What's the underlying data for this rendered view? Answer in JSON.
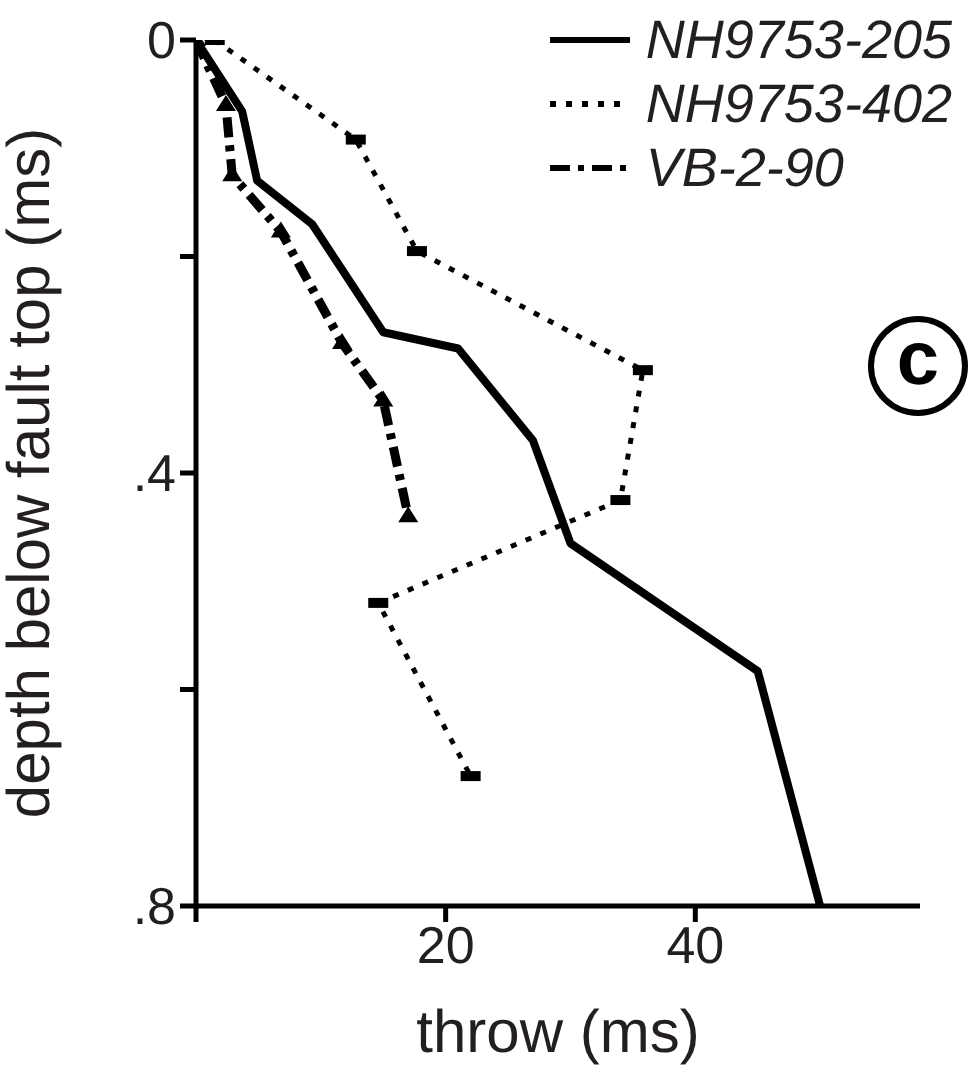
{
  "chart_data": {
    "type": "line",
    "xlabel": "throw (ms)",
    "ylabel": "depth below fault top (ms)",
    "annotations": [
      "c"
    ],
    "xlim": [
      0,
      58
    ],
    "xticks": [
      {
        "value": 0,
        "label": null
      },
      20,
      40
    ],
    "ylim": [
      0.8,
      0
    ],
    "yticks": [
      {
        "value": 0,
        "label": "0"
      },
      {
        "value": 0.2,
        "label": null
      },
      {
        "value": 0.4,
        "label": ".4"
      },
      {
        "value": 0.6,
        "label": null
      },
      {
        "value": 0.8,
        "label": ".8"
      }
    ],
    "grid": false,
    "legend": "top right",
    "series": [
      {
        "name": "NH9753-205",
        "color": "#000000",
        "line_style": "solid",
        "marker": "none",
        "x": [
          0,
          3.7,
          4.9,
          9.3,
          15,
          21,
          27,
          30,
          45,
          50
        ],
        "values": [
          0,
          0.066,
          0.13,
          0.17,
          0.27,
          0.285,
          0.37,
          0.465,
          0.583,
          0.8
        ]
      },
      {
        "name": "NH9753-402",
        "color": "#000000",
        "line_style": "dotted",
        "marker": "square",
        "x": [
          1.5,
          12.8,
          17.7,
          35.8,
          34,
          14.6,
          22
        ],
        "values": [
          0,
          0.092,
          0.195,
          0.305,
          0.425,
          0.52,
          0.68
        ]
      },
      {
        "name": "VB-2-90",
        "color": "#000000",
        "line_style": "dashed",
        "marker": "triangle",
        "x": [
          0,
          2.4,
          2.9,
          6.8,
          11.7,
          15,
          17
        ],
        "values": [
          0,
          0.06,
          0.125,
          0.177,
          0.28,
          0.333,
          0.44
        ]
      }
    ]
  }
}
